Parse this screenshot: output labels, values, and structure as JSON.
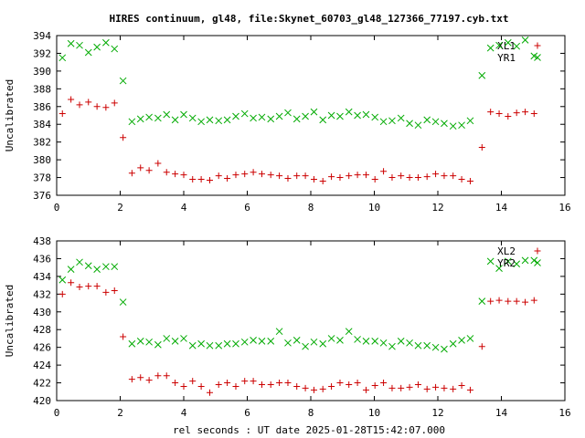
{
  "title": "HIRES continuum, gl48, file:Skynet_60703_gl48_127366_77197.cyb.txt",
  "xlabel": "rel seconds : UT date 2025-01-28T15:42:07.000",
  "colors": {
    "red": "#cc0000",
    "green": "#00aa00"
  },
  "chart_data": [
    {
      "type": "scatter",
      "ylabel": "Uncalibrated",
      "xlim": [
        0,
        16
      ],
      "ylim": [
        376,
        394
      ],
      "xticks": [
        0,
        2,
        4,
        6,
        8,
        10,
        12,
        14,
        16
      ],
      "yticks": [
        376,
        378,
        380,
        382,
        384,
        386,
        388,
        390,
        392,
        394
      ],
      "legend_position": "top-right",
      "series": [
        {
          "name": "XL1",
          "marker": "plus",
          "color": "red",
          "x": [
            0.18,
            0.45,
            0.72,
            1.0,
            1.27,
            1.55,
            1.82,
            2.09,
            2.37,
            2.64,
            2.91,
            3.19,
            3.46,
            3.73,
            4.0,
            4.28,
            4.55,
            4.82,
            5.1,
            5.37,
            5.64,
            5.92,
            6.19,
            6.46,
            6.74,
            7.01,
            7.28,
            7.56,
            7.83,
            8.1,
            8.38,
            8.65,
            8.92,
            9.2,
            9.47,
            9.74,
            10.02,
            10.29,
            10.56,
            10.84,
            11.11,
            11.38,
            11.66,
            11.93,
            12.2,
            12.48,
            12.75,
            13.02,
            13.39,
            13.66,
            13.93,
            14.21,
            14.48,
            14.75,
            15.03
          ],
          "y": [
            385.2,
            386.8,
            386.2,
            386.5,
            386.0,
            385.9,
            386.4,
            382.5,
            378.5,
            379.1,
            378.8,
            379.6,
            378.6,
            378.4,
            378.3,
            377.8,
            377.8,
            377.7,
            378.2,
            377.9,
            378.3,
            378.4,
            378.6,
            378.4,
            378.3,
            378.2,
            377.9,
            378.2,
            378.2,
            377.8,
            377.6,
            378.1,
            378.0,
            378.2,
            378.3,
            378.3,
            377.8,
            378.7,
            378.0,
            378.2,
            378.0,
            378.0,
            378.1,
            378.4,
            378.2,
            378.2,
            377.8,
            377.6,
            381.4,
            385.4,
            385.2,
            384.9,
            385.3,
            385.4,
            385.2
          ]
        },
        {
          "name": "YR1",
          "marker": "cross",
          "color": "green",
          "x": [
            0.18,
            0.45,
            0.72,
            1.0,
            1.27,
            1.55,
            1.82,
            2.09,
            2.37,
            2.64,
            2.91,
            3.19,
            3.46,
            3.73,
            4.0,
            4.28,
            4.55,
            4.82,
            5.1,
            5.37,
            5.64,
            5.92,
            6.19,
            6.46,
            6.74,
            7.01,
            7.28,
            7.56,
            7.83,
            8.1,
            8.38,
            8.65,
            8.92,
            9.2,
            9.47,
            9.74,
            10.02,
            10.29,
            10.56,
            10.84,
            11.11,
            11.38,
            11.66,
            11.93,
            12.2,
            12.48,
            12.75,
            13.02,
            13.39,
            13.66,
            13.93,
            14.21,
            14.48,
            14.75,
            15.03
          ],
          "y": [
            391.5,
            393.1,
            392.9,
            392.1,
            392.7,
            393.2,
            392.5,
            388.9,
            384.3,
            384.6,
            384.8,
            384.7,
            385.1,
            384.5,
            385.1,
            384.7,
            384.3,
            384.5,
            384.4,
            384.5,
            384.9,
            385.2,
            384.7,
            384.8,
            384.6,
            384.9,
            385.3,
            384.6,
            384.9,
            385.4,
            384.5,
            385.0,
            384.9,
            385.4,
            385.0,
            385.1,
            384.8,
            384.3,
            384.4,
            384.7,
            384.1,
            383.9,
            384.5,
            384.3,
            384.1,
            383.8,
            383.9,
            384.4,
            389.5,
            392.6,
            392.9,
            393.2,
            392.8,
            393.5,
            391.7
          ]
        }
      ]
    },
    {
      "type": "scatter",
      "ylabel": "Uncalibrated",
      "xlim": [
        0,
        16
      ],
      "ylim": [
        420,
        438
      ],
      "xticks": [
        0,
        2,
        4,
        6,
        8,
        10,
        12,
        14,
        16
      ],
      "yticks": [
        420,
        422,
        424,
        426,
        428,
        430,
        432,
        434,
        436,
        438
      ],
      "legend_position": "top-right",
      "series": [
        {
          "name": "XL2",
          "marker": "plus",
          "color": "red",
          "x": [
            0.18,
            0.45,
            0.72,
            1.0,
            1.27,
            1.55,
            1.82,
            2.09,
            2.37,
            2.64,
            2.91,
            3.19,
            3.46,
            3.73,
            4.0,
            4.28,
            4.55,
            4.82,
            5.1,
            5.37,
            5.64,
            5.92,
            6.19,
            6.46,
            6.74,
            7.01,
            7.28,
            7.56,
            7.83,
            8.1,
            8.38,
            8.65,
            8.92,
            9.2,
            9.47,
            9.74,
            10.02,
            10.29,
            10.56,
            10.84,
            11.11,
            11.38,
            11.66,
            11.93,
            12.2,
            12.48,
            12.75,
            13.02,
            13.39,
            13.66,
            13.93,
            14.21,
            14.48,
            14.75,
            15.03
          ],
          "y": [
            432.0,
            433.3,
            432.8,
            432.9,
            432.9,
            432.2,
            432.4,
            427.2,
            422.4,
            422.6,
            422.3,
            422.8,
            422.8,
            422.0,
            421.6,
            422.2,
            421.6,
            420.9,
            421.8,
            422.0,
            421.6,
            422.2,
            422.2,
            421.8,
            421.8,
            422.0,
            422.0,
            421.6,
            421.4,
            421.2,
            421.3,
            421.6,
            422.0,
            421.8,
            422.0,
            421.2,
            421.7,
            422.0,
            421.4,
            421.4,
            421.5,
            421.8,
            421.3,
            421.5,
            421.4,
            421.3,
            421.7,
            421.2,
            426.1,
            431.2,
            431.3,
            431.2,
            431.2,
            431.1,
            431.3
          ]
        },
        {
          "name": "YR2",
          "marker": "cross",
          "color": "green",
          "x": [
            0.18,
            0.45,
            0.72,
            1.0,
            1.27,
            1.55,
            1.82,
            2.09,
            2.37,
            2.64,
            2.91,
            3.19,
            3.46,
            3.73,
            4.0,
            4.28,
            4.55,
            4.82,
            5.1,
            5.37,
            5.64,
            5.92,
            6.19,
            6.46,
            6.74,
            7.01,
            7.28,
            7.56,
            7.83,
            8.1,
            8.38,
            8.65,
            8.92,
            9.2,
            9.47,
            9.74,
            10.02,
            10.29,
            10.56,
            10.84,
            11.11,
            11.38,
            11.66,
            11.93,
            12.2,
            12.48,
            12.75,
            13.02,
            13.39,
            13.66,
            13.93,
            14.21,
            14.48,
            14.75,
            15.03
          ],
          "y": [
            433.6,
            434.8,
            435.6,
            435.2,
            434.8,
            435.1,
            435.1,
            431.1,
            426.4,
            426.7,
            426.6,
            426.3,
            427.0,
            426.7,
            427.0,
            426.2,
            426.4,
            426.2,
            426.2,
            426.4,
            426.4,
            426.6,
            426.8,
            426.7,
            426.7,
            427.8,
            426.5,
            426.8,
            426.1,
            426.6,
            426.4,
            427.0,
            426.8,
            427.8,
            426.9,
            426.7,
            426.7,
            426.5,
            426.1,
            426.7,
            426.5,
            426.2,
            426.2,
            426.0,
            425.8,
            426.4,
            426.8,
            427.0,
            431.2,
            435.7,
            434.9,
            435.7,
            435.4,
            435.8,
            435.8
          ]
        }
      ]
    }
  ]
}
